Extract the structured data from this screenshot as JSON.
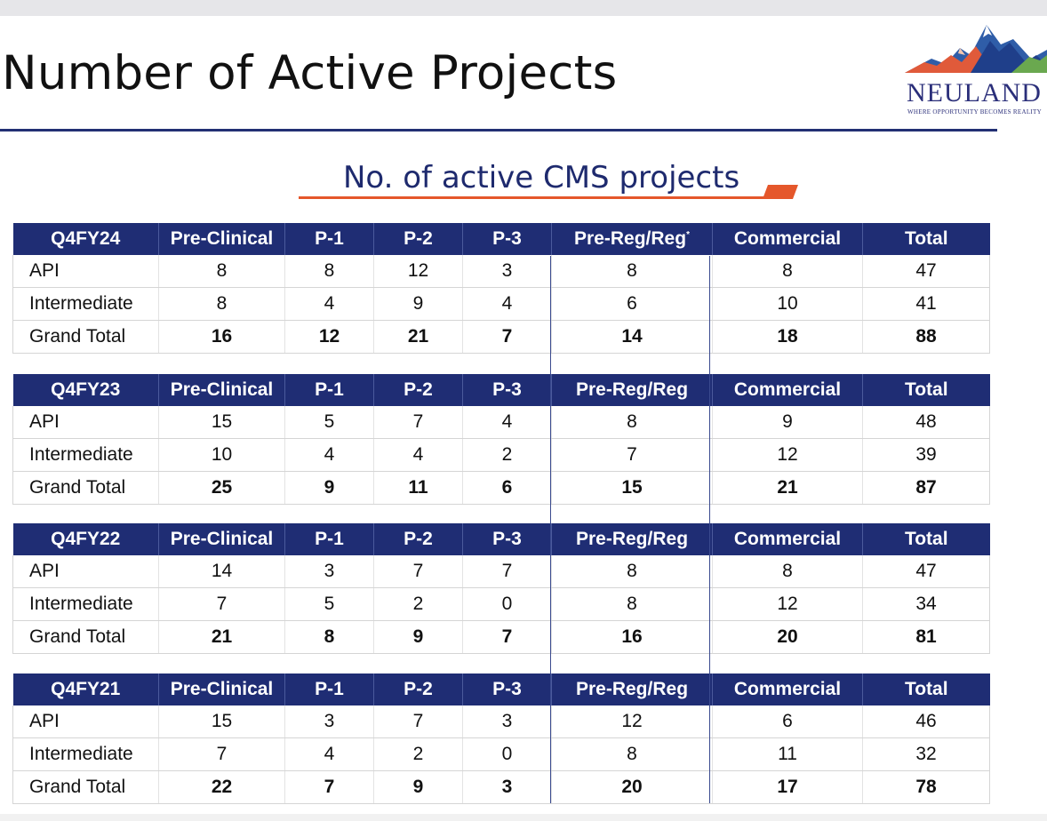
{
  "title": "Number of Active Projects",
  "logo": {
    "name": "NEULAND",
    "tagline": "WHERE OPPORTUNITY BECOMES REALITY"
  },
  "subtitle": "No. of active CMS projects",
  "colors": {
    "header_bg": "#1f2d74",
    "accent": "#e5572b",
    "rule": "#223073"
  },
  "columns": [
    "Pre-Clinical",
    "P-1",
    "P-2",
    "P-3",
    "Pre-Reg/Reg",
    "Commercial",
    "Total"
  ],
  "asterisk": "*",
  "tables": [
    {
      "period": "Q4FY24",
      "rows": [
        {
          "label": "API",
          "values": [
            "8",
            "8",
            "12",
            "3",
            "8",
            "8",
            "47"
          ]
        },
        {
          "label": "Intermediate",
          "values": [
            "8",
            "4",
            "9",
            "4",
            "6",
            "10",
            "41"
          ]
        },
        {
          "label": "Grand Total",
          "values": [
            "16",
            "12",
            "21",
            "7",
            "14",
            "18",
            "88"
          ]
        }
      ]
    },
    {
      "period": "Q4FY23",
      "rows": [
        {
          "label": "API",
          "values": [
            "15",
            "5",
            "7",
            "4",
            "8",
            "9",
            "48"
          ]
        },
        {
          "label": "Intermediate",
          "values": [
            "10",
            "4",
            "4",
            "2",
            "7",
            "12",
            "39"
          ]
        },
        {
          "label": "Grand Total",
          "values": [
            "25",
            "9",
            "11",
            "6",
            "15",
            "21",
            "87"
          ]
        }
      ]
    },
    {
      "period": "Q4FY22",
      "rows": [
        {
          "label": "API",
          "values": [
            "14",
            "3",
            "7",
            "7",
            "8",
            "8",
            "47"
          ]
        },
        {
          "label": "Intermediate",
          "values": [
            "7",
            "5",
            "2",
            "0",
            "8",
            "12",
            "34"
          ]
        },
        {
          "label": "Grand Total",
          "values": [
            "21",
            "8",
            "9",
            "7",
            "16",
            "20",
            "81"
          ]
        }
      ]
    },
    {
      "period": "Q4FY21",
      "rows": [
        {
          "label": "API",
          "values": [
            "15",
            "3",
            "7",
            "3",
            "12",
            "6",
            "46"
          ]
        },
        {
          "label": "Intermediate",
          "values": [
            "7",
            "4",
            "2",
            "0",
            "8",
            "11",
            "32"
          ]
        },
        {
          "label": "Grand Total",
          "values": [
            "22",
            "7",
            "9",
            "3",
            "20",
            "17",
            "78"
          ]
        }
      ]
    }
  ]
}
